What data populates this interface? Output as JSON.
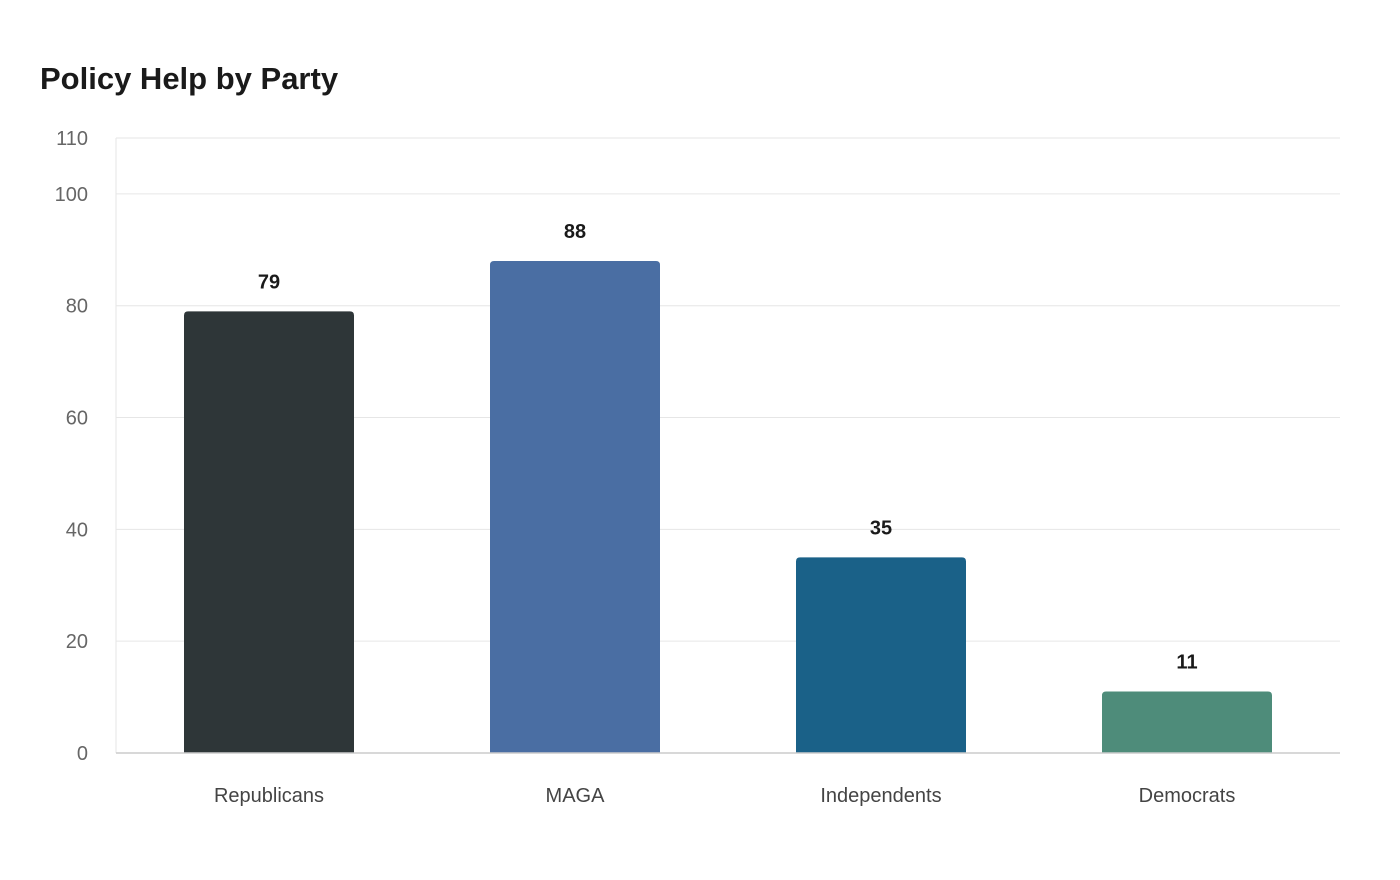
{
  "chart_data": {
    "type": "bar",
    "title": "Policy Help by Party",
    "categories": [
      "Republicans",
      "MAGA",
      "Independents",
      "Democrats"
    ],
    "values": [
      79,
      88,
      35,
      11
    ],
    "colors": [
      "#2e3638",
      "#4a6ea3",
      "#1a6188",
      "#4e8c7a"
    ],
    "yticks": [
      0,
      20,
      40,
      60,
      80,
      100,
      110
    ],
    "ylim": [
      0,
      110
    ],
    "xlabel": "",
    "ylabel": "",
    "grid": true,
    "data_labels": true,
    "legend": "none"
  },
  "style": {
    "grid_color": "#e6e6e6",
    "axis_color": "#cccccc"
  }
}
